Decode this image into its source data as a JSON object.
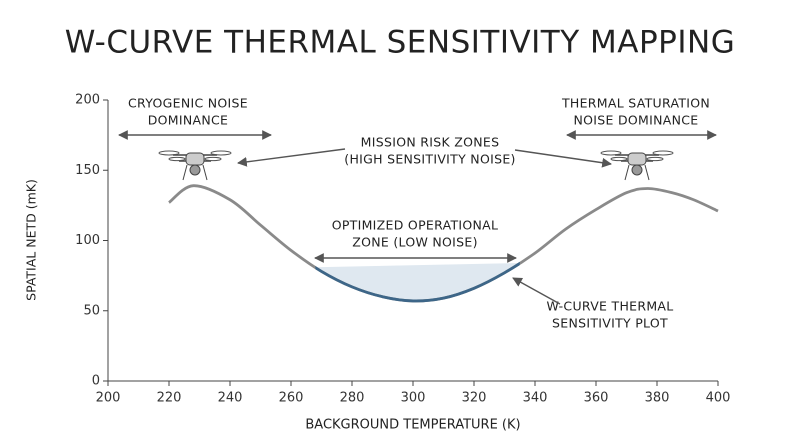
{
  "chart_data": {
    "type": "line",
    "title": "W-CURVE THERMAL SENSITIVITY MAPPING",
    "x_label": "BACKGROUND TEMPERATURE (K)",
    "y_label": "SPATIAL NETD (mK)",
    "x": [
      220,
      228,
      240,
      250,
      260,
      270,
      280,
      290,
      300,
      310,
      320,
      330,
      340,
      350,
      360,
      370,
      377,
      385,
      392,
      400
    ],
    "series": [
      {
        "color": "#8a8a8a",
        "values": [
          127,
          139,
          129,
          111,
          93,
          78,
          67,
          60,
          57,
          59,
          66,
          77,
          91,
          108,
          122,
          134,
          137,
          134,
          129,
          121
        ]
      }
    ],
    "zone": {
      "x": [
        268,
        335
      ],
      "line_color": "#3d6688",
      "fill": "#dfe8f0"
    },
    "xlim": [
      200,
      400
    ],
    "xticks": [
      200,
      220,
      240,
      260,
      280,
      300,
      320,
      340,
      360,
      380,
      400
    ],
    "ylim": [
      0,
      200
    ],
    "yticks": [
      0,
      50,
      100,
      150,
      200
    ],
    "annotations": [
      {
        "lines": [
          "CRYOGENIC NOISE",
          "DOMINANCE"
        ]
      },
      {
        "lines": [
          "MISSION RISK ZONES",
          "(HIGH SENSITIVITY NOISE)"
        ]
      },
      {
        "lines": [
          "THERMAL SATURATION",
          "NOISE DOMINANCE"
        ]
      },
      {
        "lines": [
          "OPTIMIZED OPERATIONAL",
          "ZONE (LOW NOISE)"
        ]
      },
      {
        "lines": [
          "W-CURVE THERMAL",
          "SENSITIVITY PLOT"
        ]
      }
    ]
  }
}
